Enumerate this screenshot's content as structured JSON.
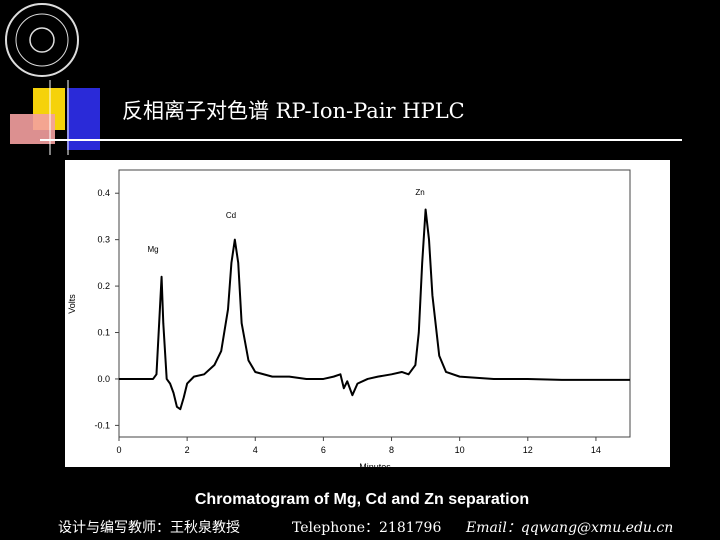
{
  "slide": {
    "title": "反相离子对色谱 RP-Ion-Pair HPLC",
    "footer": [
      "设计与编写教师：王秋泉教授",
      "Telephone：2181796",
      "Email：qqwang@xmu.edu.cn"
    ]
  },
  "chart_data": {
    "type": "line",
    "title": "Chromatogram of Mg, Cd and Zn separation",
    "xlabel": "Minutes",
    "ylabel": "Volts",
    "annotations": [
      "Zn",
      "Cd",
      "Mg"
    ],
    "x": [
      0,
      0.5,
      1.0,
      1.1,
      1.2,
      1.25,
      1.3,
      1.4,
      1.5,
      1.6,
      1.7,
      1.8,
      1.9,
      2.0,
      2.2,
      2.5,
      2.8,
      3.0,
      3.2,
      3.3,
      3.4,
      3.5,
      3.6,
      3.8,
      4.0,
      4.5,
      5.0,
      5.5,
      6.0,
      6.3,
      6.5,
      6.6,
      6.7,
      6.85,
      7.0,
      7.3,
      7.6,
      8.0,
      8.3,
      8.5,
      8.7,
      8.8,
      8.9,
      9.0,
      9.1,
      9.2,
      9.4,
      9.6,
      10,
      11,
      12,
      13,
      14,
      15
    ],
    "series": [
      {
        "color": "#000000",
        "values": [
          0,
          0,
          0,
          0.01,
          0.15,
          0.22,
          0.12,
          0.0,
          -0.01,
          -0.03,
          -0.06,
          -0.065,
          -0.04,
          -0.01,
          0.005,
          0.01,
          0.03,
          0.06,
          0.15,
          0.25,
          0.3,
          0.25,
          0.12,
          0.04,
          0.015,
          0.005,
          0.005,
          0.0,
          0.0,
          0.005,
          0.01,
          -0.02,
          -0.005,
          -0.035,
          -0.01,
          0.0,
          0.005,
          0.01,
          0.015,
          0.01,
          0.03,
          0.1,
          0.25,
          0.365,
          0.3,
          0.18,
          0.05,
          0.015,
          0.005,
          0.0,
          0.0,
          -0.002,
          -0.002,
          -0.002
        ]
      }
    ],
    "xlim": [
      0,
      15
    ],
    "ylim": [
      -0.125,
      0.45
    ],
    "xticks": [
      0,
      2,
      4,
      6,
      8,
      10,
      12,
      14
    ],
    "yticks": [
      -0.1,
      {
        "value": 0,
        "label": "0.0"
      },
      0.1,
      0.2,
      0.3,
      0.4
    ]
  }
}
